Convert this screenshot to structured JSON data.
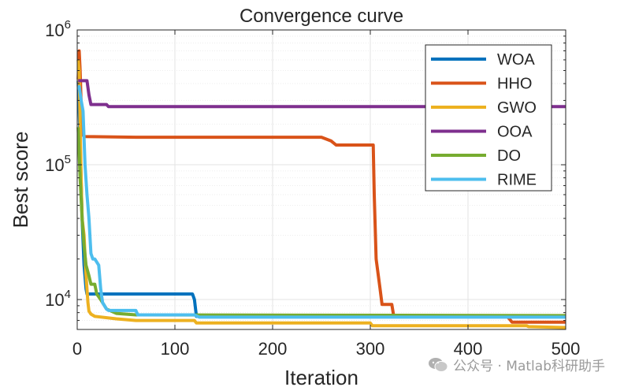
{
  "chart_data": {
    "type": "line",
    "title": "Convergence curve",
    "xlabel": "Iteration",
    "ylabel": "Best score",
    "xlim": [
      0,
      500
    ],
    "ylim": [
      6000,
      1000000
    ],
    "yscale": "log",
    "xticks": [
      0,
      100,
      200,
      300,
      400,
      500
    ],
    "xtick_labels": [
      "0",
      "100",
      "200",
      "300",
      "400",
      "500"
    ],
    "yticks": [
      10000,
      100000,
      1000000
    ],
    "ytick_labels": [
      {
        "base": "10",
        "exp": "4"
      },
      {
        "base": "10",
        "exp": "5"
      },
      {
        "base": "10",
        "exp": "6"
      }
    ],
    "grid": true,
    "legend_position": "top-right",
    "series": [
      {
        "name": "WOA",
        "color": "#0072BD",
        "x": [
          1,
          3,
          5,
          7,
          9,
          10,
          12,
          118,
          120,
          122,
          500
        ],
        "y": [
          420000,
          150000,
          40000,
          18000,
          12000,
          11000,
          11000,
          11000,
          10000,
          7500,
          7500
        ]
      },
      {
        "name": "HHO",
        "color": "#D95319",
        "x": [
          1,
          2,
          3,
          4,
          5,
          6,
          8,
          60,
          250,
          260,
          265,
          270,
          303,
          304,
          306,
          310,
          312,
          322,
          324,
          440,
          443,
          445,
          500
        ],
        "y": [
          430000,
          700000,
          500000,
          280000,
          200000,
          165000,
          162000,
          160000,
          160000,
          150000,
          140000,
          140000,
          140000,
          60000,
          20000,
          12000,
          9200,
          9200,
          7500,
          7500,
          7100,
          6800,
          6800
        ]
      },
      {
        "name": "GWO",
        "color": "#EDB120",
        "x": [
          1,
          2,
          3,
          4,
          5,
          7,
          9,
          11,
          12,
          14,
          18,
          40,
          60,
          120,
          122,
          300,
          302,
          460,
          462,
          500
        ],
        "y": [
          600000,
          500000,
          200000,
          80000,
          40000,
          30000,
          15000,
          9500,
          8200,
          7800,
          7500,
          7200,
          7000,
          7000,
          6700,
          6700,
          6400,
          6400,
          6300,
          6200
        ]
      },
      {
        "name": "OOA",
        "color": "#7E2F8E",
        "x": [
          1,
          10,
          12,
          14,
          30,
          32,
          500
        ],
        "y": [
          420000,
          420000,
          330000,
          280000,
          280000,
          270000,
          270000
        ]
      },
      {
        "name": "DO",
        "color": "#77AC30",
        "x": [
          1,
          3,
          5,
          7,
          9,
          12,
          14,
          18,
          20,
          24,
          30,
          40,
          60,
          500
        ],
        "y": [
          190000,
          80000,
          40000,
          25000,
          18000,
          15000,
          13000,
          13000,
          11000,
          10000,
          8500,
          7900,
          7700,
          7600
        ]
      },
      {
        "name": "RIME",
        "color": "#4DBEEE",
        "x": [
          1,
          2,
          4,
          6,
          8,
          10,
          12,
          14,
          16,
          18,
          22,
          24,
          26,
          30,
          32,
          60,
          62,
          120,
          125,
          500
        ],
        "y": [
          360000,
          380000,
          300000,
          250000,
          100000,
          60000,
          40000,
          22000,
          20000,
          20000,
          18000,
          12000,
          9500,
          8500,
          8300,
          8300,
          7700,
          7700,
          7400,
          7400
        ]
      }
    ]
  },
  "watermark": {
    "text": "公众号 · Matlab科研助手"
  }
}
